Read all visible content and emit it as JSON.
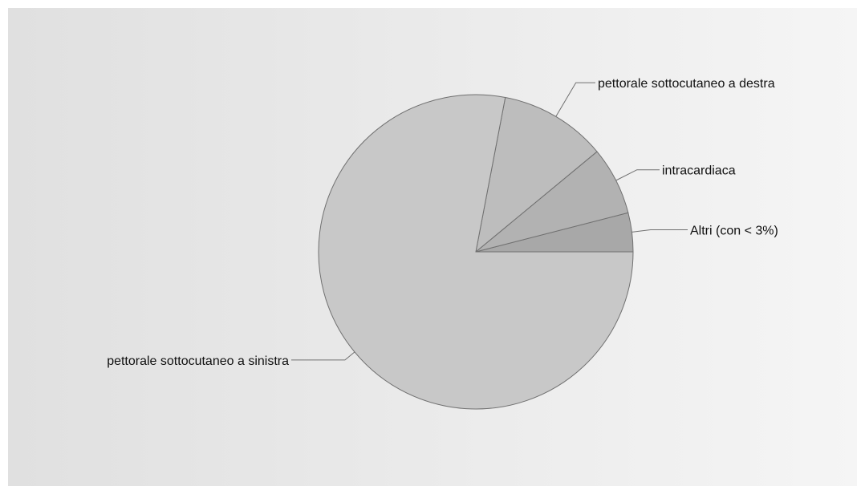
{
  "chart_data": {
    "type": "pie",
    "title": "",
    "start_angle_deg": 0,
    "direction": "counterclockwise",
    "slices": [
      {
        "label": "Altri (con < 3%)",
        "value": 4,
        "color": "#a8a8a8"
      },
      {
        "label": "intracardiaca",
        "value": 7,
        "color": "#b2b2b2"
      },
      {
        "label": "pettorale sottocutaneo a destra",
        "value": 11,
        "color": "#bdbdbd"
      },
      {
        "label": "pettorale sottocutaneo a sinistra",
        "value": 78,
        "color": "#c8c8c8"
      }
    ],
    "legend": "none",
    "labels": "outside-with-leader-lines"
  }
}
